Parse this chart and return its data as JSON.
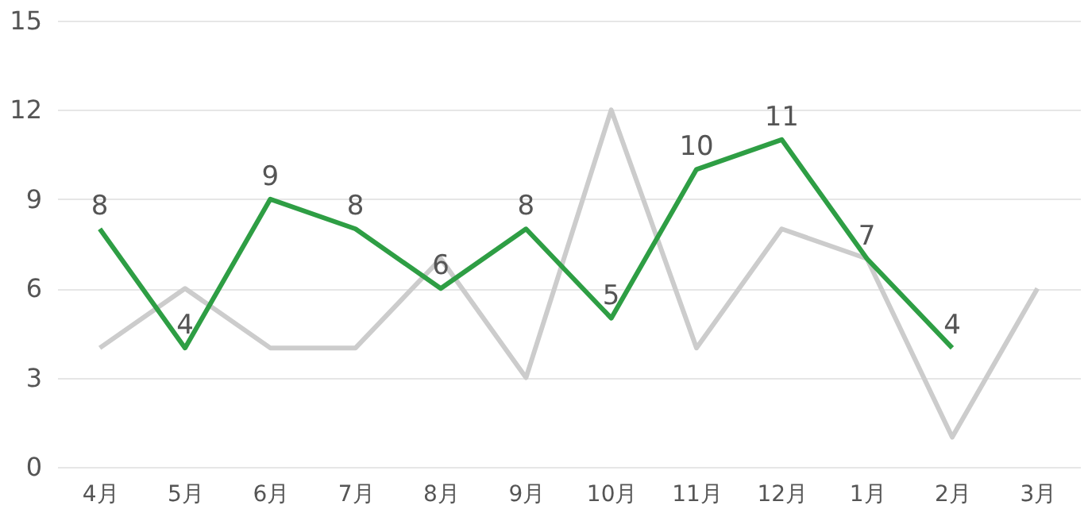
{
  "chart_data": {
    "type": "line",
    "categories": [
      "4月",
      "5月",
      "6月",
      "7月",
      "8月",
      "9月",
      "10月",
      "11月",
      "12月",
      "1月",
      "2月",
      "3月"
    ],
    "series": [
      {
        "color": "#cccccc",
        "values": [
          4,
          6,
          4,
          4,
          7,
          3,
          12,
          4,
          8,
          7,
          1,
          6
        ]
      },
      {
        "color": "#2e9e44",
        "values": [
          8,
          4,
          9,
          8,
          6,
          8,
          5,
          10,
          11,
          7,
          4,
          null
        ],
        "value_labels": [
          "8",
          "4",
          "9",
          "8",
          "6",
          "8",
          "5",
          "10",
          "11",
          "7",
          "4",
          null
        ]
      }
    ],
    "ylim": [
      0,
      15
    ],
    "yticks": [
      0,
      3,
      6,
      9,
      12,
      15
    ],
    "grid": "y",
    "marker": "none",
    "line_style": "solid"
  }
}
